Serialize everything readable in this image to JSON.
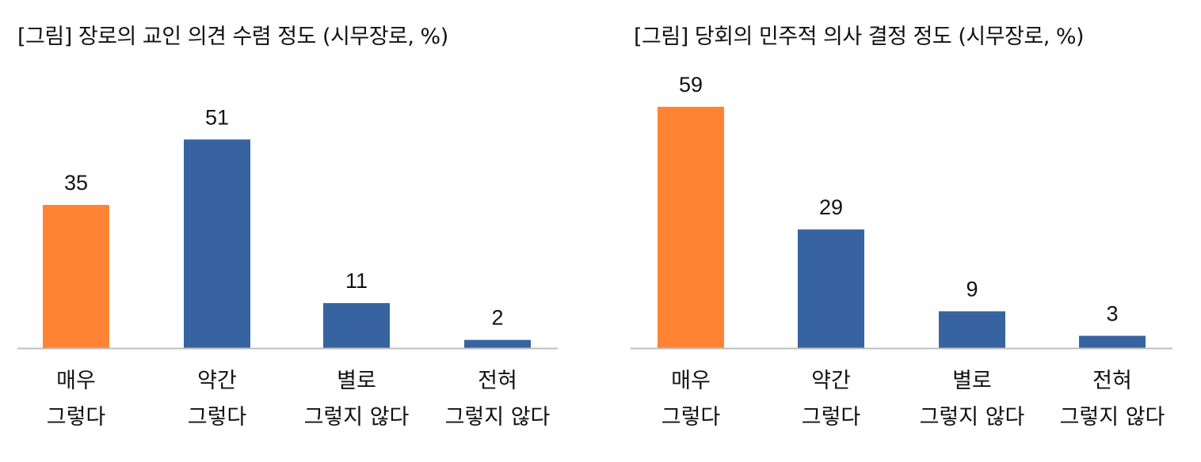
{
  "colors": {
    "highlight": "#FF8333",
    "primary": "#3764A0",
    "axis": "#BFBFBF"
  },
  "chart_data": [
    {
      "type": "bar",
      "title": "[그림] 장로의 교인 의견 수렴 정도 (시무장로, %)",
      "categories": [
        [
          "매우",
          "그렇다"
        ],
        [
          "약간",
          "그렇다"
        ],
        [
          "별로",
          "그렇지 않다"
        ],
        [
          "전혀",
          "그렇지 않다"
        ]
      ],
      "values": [
        35,
        51,
        11,
        2
      ],
      "highlight_index": 0,
      "ylim": [
        0,
        60
      ]
    },
    {
      "type": "bar",
      "title": "[그림] 당회의 민주적 의사 결정 정도 (시무장로, %)",
      "categories": [
        [
          "매우",
          "그렇다"
        ],
        [
          "약간",
          "그렇다"
        ],
        [
          "별로",
          "그렇지 않다"
        ],
        [
          "전혀",
          "그렇지 않다"
        ]
      ],
      "values": [
        59,
        29,
        9,
        3
      ],
      "highlight_index": 0,
      "ylim": [
        0,
        60
      ]
    }
  ]
}
